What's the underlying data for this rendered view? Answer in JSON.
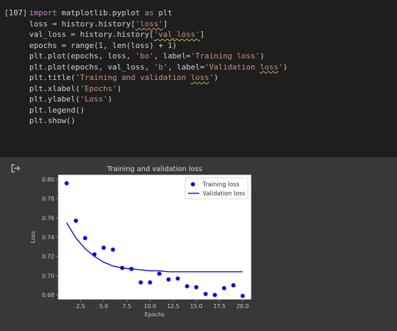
{
  "cell": {
    "exec_count": "[107]",
    "lines": [
      "import matplotlib.pyplot as plt",
      "loss = history.history['loss']",
      "val_loss = history.history['val_loss']",
      "epochs = range(1, len(loss) + 1)",
      "plt.plot(epochs, loss, 'bo', label='Training loss')",
      "plt.plot(epochs, val_loss, 'b', label='Validation loss')",
      "plt.title('Training and validation loss')",
      "plt.xlabel('Epochs')",
      "plt.ylabel('Loss')",
      "plt.legend()",
      "plt.show()"
    ]
  },
  "output": {
    "icon": "output-arrow-icon"
  },
  "colors": {
    "code_bg": "#1e1e1e",
    "output_bg": "#383838",
    "series": "#0000ff"
  },
  "chart_data": {
    "type": "line",
    "title": "Training and validation loss",
    "xlabel": "Epochs",
    "ylabel": "Loss",
    "xlim": [
      0.05,
      20.95
    ],
    "ylim": [
      0.675,
      0.805
    ],
    "xticks": [
      2.5,
      5.0,
      7.5,
      10.0,
      12.5,
      15.0,
      17.5,
      20.0
    ],
    "xtick_labels": [
      "2.5",
      "5.0",
      "7.5",
      "10.0",
      "12.5",
      "15.0",
      "17.5",
      "20.0"
    ],
    "yticks": [
      0.68,
      0.7,
      0.72,
      0.74,
      0.76,
      0.78,
      0.8
    ],
    "ytick_labels": [
      "0.68",
      "0.70",
      "0.72",
      "0.74",
      "0.76",
      "0.78",
      "0.80"
    ],
    "legend": "top-right",
    "grid": false,
    "series": [
      {
        "name": "Training loss",
        "style": "points",
        "color": "#0000ff",
        "x": [
          1,
          2,
          3,
          4,
          5,
          6,
          7,
          8,
          9,
          10,
          11,
          12,
          13,
          14,
          15,
          16,
          17,
          18,
          19,
          20
        ],
        "values": [
          0.796,
          0.757,
          0.739,
          0.722,
          0.729,
          0.727,
          0.708,
          0.707,
          0.693,
          0.693,
          0.702,
          0.696,
          0.697,
          0.689,
          0.688,
          0.681,
          0.68,
          0.687,
          0.69,
          0.679
        ]
      },
      {
        "name": "Validation loss",
        "style": "line",
        "color": "#0000ff",
        "x": [
          1,
          2,
          3,
          4,
          5,
          6,
          7,
          8,
          9,
          10,
          11,
          12,
          13,
          14,
          15,
          16,
          17,
          18,
          19,
          20
        ],
        "values": [
          0.755,
          0.739,
          0.728,
          0.72,
          0.714,
          0.71,
          0.708,
          0.707,
          0.706,
          0.705,
          0.705,
          0.704,
          0.704,
          0.704,
          0.704,
          0.704,
          0.704,
          0.704,
          0.704,
          0.704
        ]
      }
    ]
  }
}
